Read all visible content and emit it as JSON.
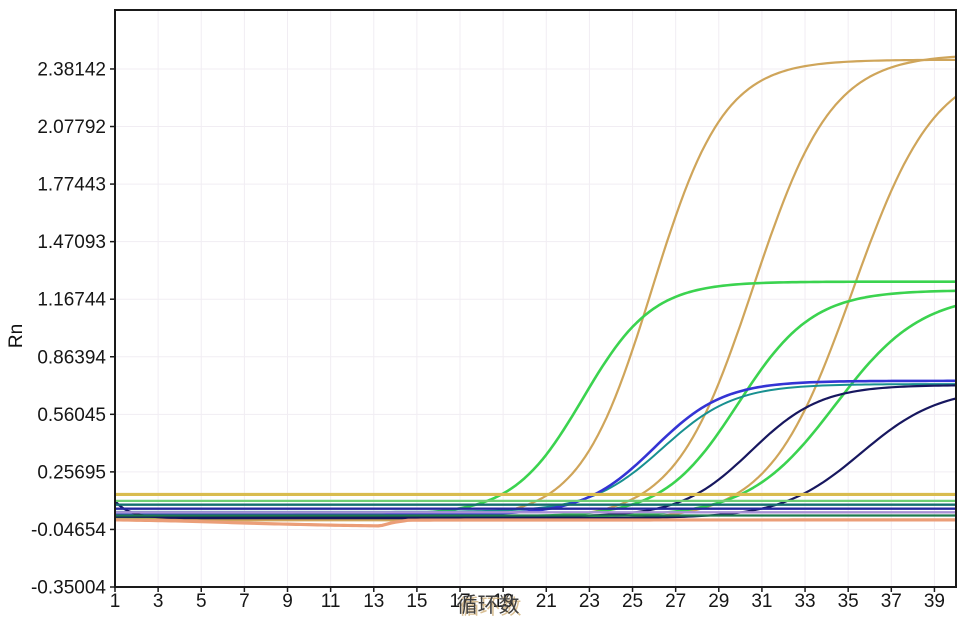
{
  "chart_data": {
    "type": "line",
    "subtype": "qpcr-amplification",
    "xlabel": "循环数",
    "ylabel": "Rn",
    "xlim": [
      1,
      40
    ],
    "ylim": [
      -0.35004,
      2.6923
    ],
    "x_ticks": [
      1,
      3,
      5,
      7,
      9,
      11,
      13,
      15,
      17,
      19,
      21,
      23,
      25,
      27,
      29,
      31,
      33,
      35,
      37,
      39
    ],
    "y_ticks": [
      "2.38142",
      "2.07792",
      "1.77443",
      "1.47093",
      "1.16744",
      "0.86394",
      "0.56045",
      "0.25695",
      "-0.04654",
      "-0.35004"
    ],
    "grid": true,
    "legend": "none",
    "grid_color": "#f1edf3",
    "axis_color": "#1a1a1a",
    "tick_color": "#161616",
    "threshold": {
      "name": "threshold-line",
      "value": 0.138,
      "color": "#d9bc4f",
      "width": 3.2
    },
    "series": [
      {
        "name": "amp-orange-1",
        "color": "#cfa55a",
        "width": 2.2,
        "model": "sigmoid",
        "baseline": 0.01,
        "plateau": 2.43,
        "midpoint": 25.9,
        "rate": 0.6
      },
      {
        "name": "amp-orange-2",
        "color": "#cfa55a",
        "width": 2.2,
        "model": "sigmoid",
        "baseline": 0.006,
        "plateau": 2.46,
        "midpoint": 30.6,
        "rate": 0.55
      },
      {
        "name": "amp-orange-3",
        "color": "#cfa55a",
        "width": 2.2,
        "model": "sigmoid",
        "baseline": 0.002,
        "plateau": 2.42,
        "midpoint": 35.2,
        "rate": 0.52
      },
      {
        "name": "amp-green-1",
        "color": "#3bd34f",
        "width": 2.6,
        "model": "sigmoid",
        "baseline": 0.03,
        "plateau": 1.26,
        "midpoint": 22.7,
        "rate": 0.62
      },
      {
        "name": "amp-green-2",
        "color": "#3bd34f",
        "width": 2.6,
        "model": "sigmoid",
        "baseline": 0.02,
        "plateau": 1.215,
        "midpoint": 29.9,
        "rate": 0.58
      },
      {
        "name": "amp-green-3",
        "color": "#3bd34f",
        "width": 2.6,
        "model": "sigmoid",
        "baseline": 0.02,
        "plateau": 1.2,
        "midpoint": 34.4,
        "rate": 0.5
      },
      {
        "name": "amp-teal-1",
        "color": "#189090",
        "width": 2.0,
        "model": "sigmoid",
        "baseline": 0.046,
        "plateau": 0.72,
        "midpoint": 26.4,
        "rate": 0.6
      },
      {
        "name": "amp-blue-1",
        "color": "#3434d4",
        "width": 2.6,
        "model": "sigmoid",
        "baseline": 0.03,
        "plateau": 0.737,
        "midpoint": 26.0,
        "rate": 0.62
      },
      {
        "name": "amp-navy-2",
        "color": "#17175f",
        "width": 2.2,
        "model": "sigmoid",
        "baseline": 0.02,
        "plateau": 0.715,
        "midpoint": 30.5,
        "rate": 0.62
      },
      {
        "name": "amp-navy-3",
        "color": "#17175f",
        "width": 2.2,
        "model": "sigmoid",
        "baseline": 0.013,
        "plateau": 0.7,
        "midpoint": 35.6,
        "rate": 0.55,
        "drop": {
          "amp": 0.09,
          "tau": 0.7
        }
      },
      {
        "name": "baseline-salmon",
        "color": "#eb9e78",
        "width": 3.2,
        "model": "points",
        "points": [
          [
            1,
            0.004
          ],
          [
            4,
            -0.002
          ],
          [
            8,
            -0.016
          ],
          [
            11,
            -0.024
          ],
          [
            13.3,
            -0.028
          ],
          [
            13.9,
            -0.01
          ],
          [
            14.6,
            0.002
          ],
          [
            16,
            0.003
          ],
          [
            40,
            0.004
          ]
        ]
      },
      {
        "name": "flat-green",
        "color": "#6fcf72",
        "width": 2.2,
        "model": "flat",
        "value": 0.104
      },
      {
        "name": "flat-teal",
        "color": "#166f6f",
        "width": 2.4,
        "model": "flat",
        "value": 0.084
      },
      {
        "name": "flat-blue",
        "color": "#27279e",
        "width": 2.4,
        "model": "flat",
        "value": 0.063
      },
      {
        "name": "flat-violet",
        "color": "#a890d4",
        "width": 2.4,
        "model": "flat",
        "value": 0.044
      },
      {
        "name": "flat-darkgreen",
        "color": "#1d7a50",
        "width": 2.2,
        "model": "flat",
        "value": 0.027
      }
    ]
  }
}
